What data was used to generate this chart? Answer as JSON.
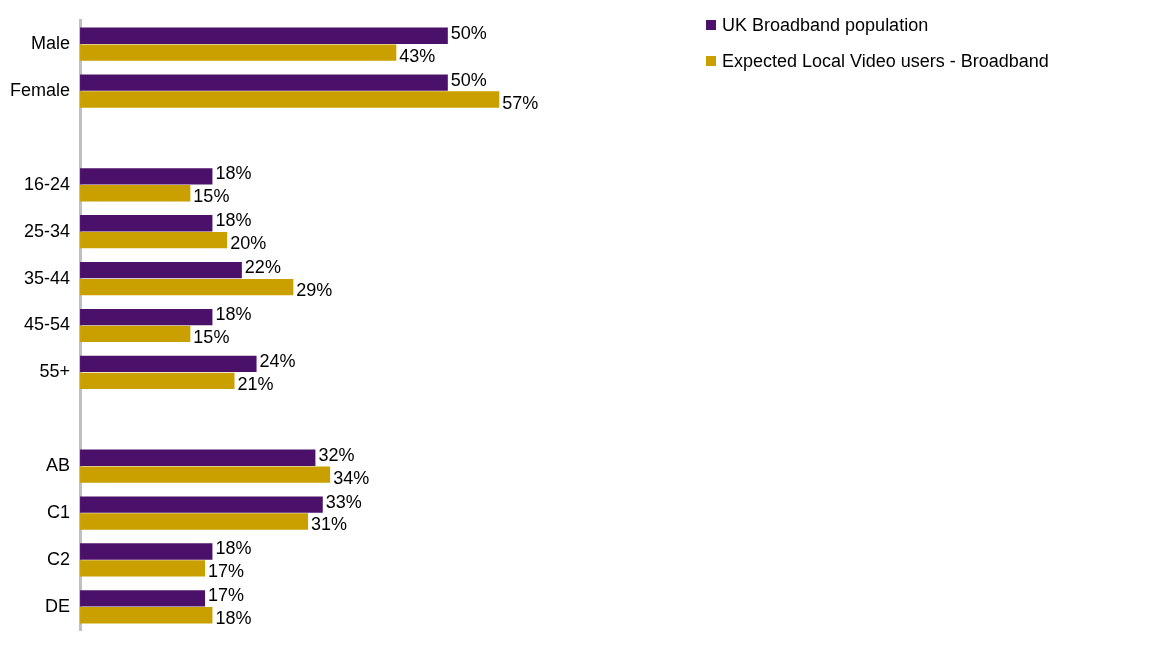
{
  "chart_data": {
    "type": "bar",
    "orientation": "horizontal",
    "grid": false,
    "legend": "top right",
    "categories": [
      "Male",
      "Female",
      null,
      "16-24",
      "25-34",
      "35-44",
      "45-54",
      "55+",
      null,
      "AB",
      "C1",
      "C2",
      "DE"
    ],
    "series": [
      {
        "name": "UK Broadband population",
        "color": "#4b1069",
        "values": [
          50,
          50,
          null,
          18,
          18,
          22,
          18,
          24,
          null,
          32,
          33,
          18,
          17
        ],
        "value_labels": [
          "50%",
          "50%",
          null,
          "18%",
          "18%",
          "22%",
          "18%",
          "24%",
          null,
          "32%",
          "33%",
          "18%",
          "17%"
        ]
      },
      {
        "name": "Expected Local Video users - Broadband",
        "color": "#c9a000",
        "values": [
          43,
          57,
          null,
          15,
          20,
          29,
          15,
          21,
          null,
          34,
          31,
          17,
          18
        ],
        "value_labels": [
          "43%",
          "57%",
          null,
          "15%",
          "20%",
          "29%",
          "15%",
          "21%",
          null,
          "34%",
          "31%",
          "17%",
          "18%"
        ]
      }
    ]
  }
}
